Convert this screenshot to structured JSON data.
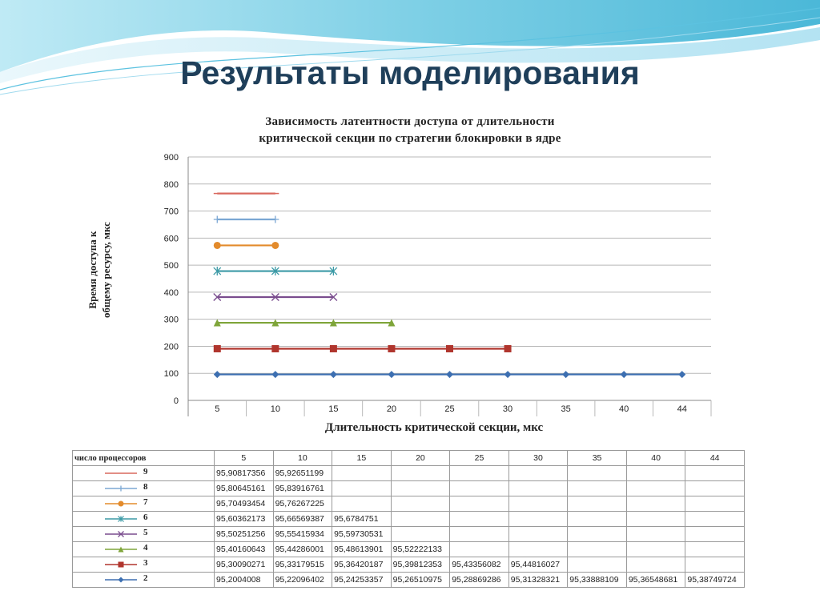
{
  "slide": {
    "title": "Результаты моделирования"
  },
  "colors": {
    "title": "#1f3f5a",
    "swoosh": "#7fd0e6",
    "series": {
      "9": "#d9695f",
      "8": "#7ba7d4",
      "7": "#e38b2c",
      "6": "#3c9aa6",
      "5": "#7a4d8e",
      "4": "#7fa53a",
      "3": "#b0352d",
      "2": "#3d6fb1"
    }
  },
  "chart_data": {
    "type": "line",
    "title_lines": [
      "Зависимость латентности доступа от длительности",
      "критической секции по стратегии блокировки в ядре"
    ],
    "ylabel_lines": [
      "Время доступа к",
      "общему ресурсу, мкс"
    ],
    "xlabel": "Длительность критической секции, мкс",
    "categories": [
      "5",
      "10",
      "15",
      "20",
      "25",
      "30",
      "35",
      "40",
      "44"
    ],
    "ylim": [
      0,
      900
    ],
    "yticks": [
      "0",
      "100",
      "200",
      "300",
      "400",
      "500",
      "600",
      "700",
      "800",
      "900"
    ],
    "grid": true,
    "series": [
      {
        "name": "9",
        "marker": "dash",
        "plot_values": [
          765,
          765
        ]
      },
      {
        "name": "8",
        "marker": "plus",
        "plot_values": [
          669,
          669
        ]
      },
      {
        "name": "7",
        "marker": "circle",
        "plot_values": [
          573,
          573
        ]
      },
      {
        "name": "6",
        "marker": "star",
        "plot_values": [
          478,
          478,
          478
        ]
      },
      {
        "name": "5",
        "marker": "x",
        "plot_values": [
          382,
          382,
          382
        ]
      },
      {
        "name": "4",
        "marker": "triangle",
        "plot_values": [
          287,
          287,
          287,
          287
        ]
      },
      {
        "name": "3",
        "marker": "square",
        "plot_values": [
          191,
          191,
          191,
          191,
          191,
          191
        ]
      },
      {
        "name": "2",
        "marker": "diamond",
        "plot_values": [
          96,
          96,
          96,
          96,
          96,
          96,
          96,
          96,
          96
        ]
      }
    ],
    "table": {
      "corner_label": "число процессоров",
      "rows": [
        {
          "name": "9",
          "values": [
            "95,90817356",
            "95,92651199",
            "",
            "",
            "",
            "",
            "",
            "",
            ""
          ]
        },
        {
          "name": "8",
          "values": [
            "95,80645161",
            "95,83916761",
            "",
            "",
            "",
            "",
            "",
            "",
            ""
          ]
        },
        {
          "name": "7",
          "values": [
            "95,70493454",
            "95,76267225",
            "",
            "",
            "",
            "",
            "",
            "",
            ""
          ]
        },
        {
          "name": "6",
          "values": [
            "95,60362173",
            "95,66569387",
            "95,6784751",
            "",
            "",
            "",
            "",
            "",
            ""
          ]
        },
        {
          "name": "5",
          "values": [
            "95,50251256",
            "95,55415934",
            "95,59730531",
            "",
            "",
            "",
            "",
            "",
            ""
          ]
        },
        {
          "name": "4",
          "values": [
            "95,40160643",
            "95,44286001",
            "95,48613901",
            "95,52222133",
            "",
            "",
            "",
            "",
            ""
          ]
        },
        {
          "name": "3",
          "values": [
            "95,30090271",
            "95,33179515",
            "95,36420187",
            "95,39812353",
            "95,43356082",
            "95,44816027",
            "",
            "",
            ""
          ]
        },
        {
          "name": "2",
          "values": [
            "95,2004008",
            "95,22096402",
            "95,24253357",
            "95,26510975",
            "95,28869286",
            "95,31328321",
            "95,33888109",
            "95,36548681",
            "95,38749724"
          ]
        }
      ]
    }
  }
}
